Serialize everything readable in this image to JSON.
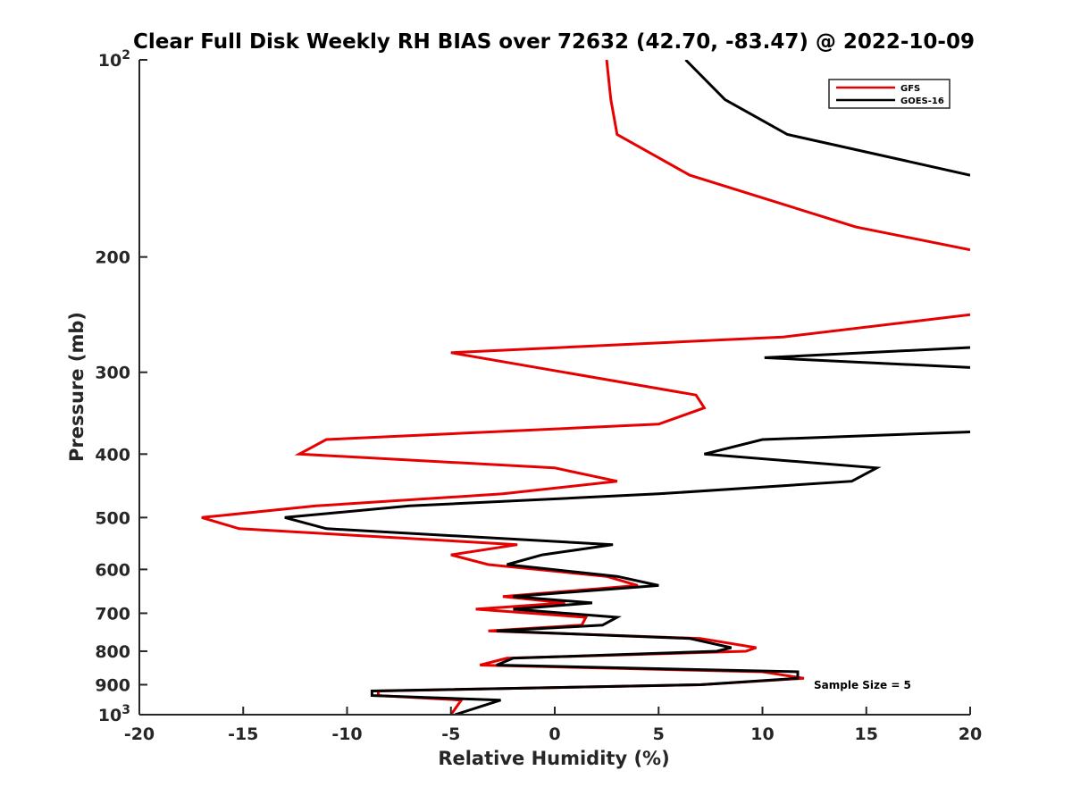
{
  "chart_data": {
    "type": "line",
    "title": "Clear Full Disk Weekly RH BIAS over 72632 (42.70, -83.47) @ 2022-10-09",
    "xlabel": "Relative Humidity (%)",
    "ylabel": "Pressure (mb)",
    "xlim": [
      -20,
      20
    ],
    "ylim": [
      100,
      1000
    ],
    "y_scale": "log",
    "y_reversed": true,
    "x_ticks": [
      "-20",
      "-15",
      "-10",
      "-5",
      "0",
      "5",
      "10",
      "15",
      "20"
    ],
    "y_ticks": [
      {
        "value": 100,
        "base": "10",
        "exp": "2"
      },
      {
        "value": 200,
        "label": "200"
      },
      {
        "value": 300,
        "label": "300"
      },
      {
        "value": 400,
        "label": "400"
      },
      {
        "value": 500,
        "label": "500"
      },
      {
        "value": 600,
        "label": "600"
      },
      {
        "value": 700,
        "label": "700"
      },
      {
        "value": 800,
        "label": "800"
      },
      {
        "value": 900,
        "label": "900"
      },
      {
        "value": 1000,
        "base": "10",
        "exp": "3"
      }
    ],
    "legend_position": "top-right",
    "grid": false,
    "annotation": "Sample Size = 5",
    "series": [
      {
        "name": "GFS",
        "color": "#e60000",
        "points": [
          [
            2.5,
            100
          ],
          [
            2.7,
            115
          ],
          [
            3.0,
            130
          ],
          [
            6.5,
            150
          ],
          [
            14.5,
            180
          ],
          [
            20.0,
            195
          ],
          [
            null,
            null
          ],
          [
            20.0,
            245
          ],
          [
            11.0,
            265
          ],
          [
            -5.0,
            280
          ],
          [
            6.8,
            325
          ],
          [
            7.2,
            340
          ],
          [
            5.0,
            360
          ],
          [
            -11.0,
            380
          ],
          [
            -12.3,
            400
          ],
          [
            0.0,
            420
          ],
          [
            3.0,
            440
          ],
          [
            -2.5,
            460
          ],
          [
            -11.5,
            480
          ],
          [
            -17.0,
            500
          ],
          [
            -15.2,
            520
          ],
          [
            -1.8,
            550
          ],
          [
            -5.0,
            570
          ],
          [
            -3.2,
            590
          ],
          [
            2.5,
            615
          ],
          [
            4.0,
            635
          ],
          [
            -2.5,
            660
          ],
          [
            0.5,
            675
          ],
          [
            -3.8,
            690
          ],
          [
            1.5,
            710
          ],
          [
            1.3,
            730
          ],
          [
            -3.2,
            745
          ],
          [
            7.0,
            765
          ],
          [
            9.7,
            790
          ],
          [
            9.2,
            800
          ],
          [
            -2.3,
            820
          ],
          [
            -3.6,
            840
          ],
          [
            10.0,
            860
          ],
          [
            12.0,
            880
          ],
          [
            7.0,
            900
          ],
          [
            -8.5,
            920
          ],
          [
            -8.5,
            935
          ],
          [
            -4.5,
            950
          ],
          [
            -5.0,
            1000
          ]
        ]
      },
      {
        "name": "GOES-16",
        "color": "#000000",
        "points": [
          [
            6.3,
            100
          ],
          [
            8.2,
            115
          ],
          [
            11.2,
            130
          ],
          [
            20.0,
            150
          ],
          [
            null,
            null
          ],
          [
            20.0,
            275
          ],
          [
            10.1,
            285
          ],
          [
            20.0,
            295
          ],
          [
            null,
            null
          ],
          [
            20.0,
            370
          ],
          [
            10.0,
            380
          ],
          [
            7.2,
            400
          ],
          [
            15.5,
            420
          ],
          [
            14.3,
            440
          ],
          [
            5.0,
            460
          ],
          [
            -7.0,
            480
          ],
          [
            -13.0,
            500
          ],
          [
            -11.0,
            520
          ],
          [
            2.8,
            550
          ],
          [
            -0.6,
            570
          ],
          [
            -2.3,
            590
          ],
          [
            3.0,
            615
          ],
          [
            5.0,
            635
          ],
          [
            -2.0,
            660
          ],
          [
            1.8,
            675
          ],
          [
            -2.0,
            690
          ],
          [
            3.0,
            710
          ],
          [
            2.3,
            730
          ],
          [
            -2.8,
            745
          ],
          [
            6.5,
            765
          ],
          [
            8.5,
            790
          ],
          [
            7.8,
            800
          ],
          [
            -2.0,
            820
          ],
          [
            -2.8,
            840
          ],
          [
            11.7,
            860
          ],
          [
            11.7,
            880
          ],
          [
            7.0,
            900
          ],
          [
            -8.8,
            920
          ],
          [
            -8.8,
            935
          ],
          [
            -2.6,
            950
          ],
          [
            -4.8,
            1000
          ]
        ]
      }
    ]
  }
}
